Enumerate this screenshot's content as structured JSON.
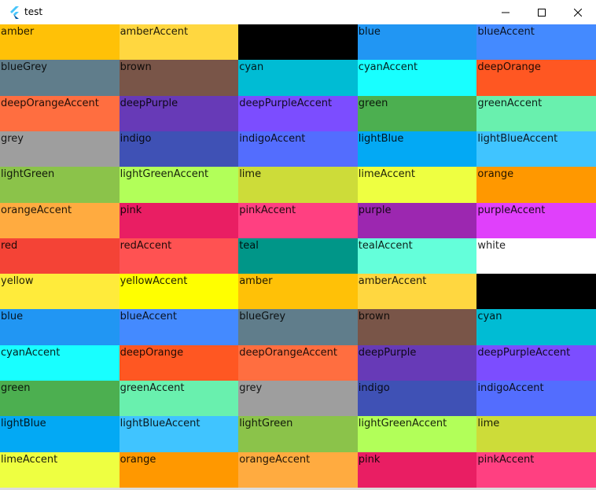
{
  "window": {
    "title": "test",
    "minimize_icon": "minimize-icon",
    "maximize_icon": "maximize-icon",
    "close_icon": "close-icon"
  },
  "cells": [
    {
      "label": "amber",
      "color": "#FFC107"
    },
    {
      "label": "amberAccent",
      "color": "#FFD740"
    },
    {
      "label": "",
      "color": "#000000"
    },
    {
      "label": "blue",
      "color": "#2196F3"
    },
    {
      "label": "blueAccent",
      "color": "#448AFF"
    },
    {
      "label": "blueGrey",
      "color": "#607D8B"
    },
    {
      "label": "brown",
      "color": "#795548"
    },
    {
      "label": "cyan",
      "color": "#00BCD4"
    },
    {
      "label": "cyanAccent",
      "color": "#18FFFF"
    },
    {
      "label": "deepOrange",
      "color": "#FF5722"
    },
    {
      "label": "deepOrangeAccent",
      "color": "#FF6E40"
    },
    {
      "label": "deepPurple",
      "color": "#673AB7"
    },
    {
      "label": "deepPurpleAccent",
      "color": "#7C4DFF"
    },
    {
      "label": "green",
      "color": "#4CAF50"
    },
    {
      "label": "greenAccent",
      "color": "#69F0AE"
    },
    {
      "label": "grey",
      "color": "#9E9E9E"
    },
    {
      "label": "indigo",
      "color": "#3F51B5"
    },
    {
      "label": "indigoAccent",
      "color": "#536DFE"
    },
    {
      "label": "lightBlue",
      "color": "#03A9F4"
    },
    {
      "label": "lightBlueAccent",
      "color": "#40C4FF"
    },
    {
      "label": "lightGreen",
      "color": "#8BC34A"
    },
    {
      "label": "lightGreenAccent",
      "color": "#B2FF59"
    },
    {
      "label": "lime",
      "color": "#CDDC39"
    },
    {
      "label": "limeAccent",
      "color": "#EEFF41"
    },
    {
      "label": "orange",
      "color": "#FF9800"
    },
    {
      "label": "orangeAccent",
      "color": "#FFAB40"
    },
    {
      "label": "pink",
      "color": "#E91E63"
    },
    {
      "label": "pinkAccent",
      "color": "#FF4081"
    },
    {
      "label": "purple",
      "color": "#9C27B0"
    },
    {
      "label": "purpleAccent",
      "color": "#E040FB"
    },
    {
      "label": "red",
      "color": "#F44336"
    },
    {
      "label": "redAccent",
      "color": "#FF5252"
    },
    {
      "label": "teal",
      "color": "#009688"
    },
    {
      "label": "tealAccent",
      "color": "#64FFDA"
    },
    {
      "label": "white",
      "color": "#FFFFFF"
    },
    {
      "label": "yellow",
      "color": "#FFEB3B"
    },
    {
      "label": "yellowAccent",
      "color": "#FFFF00"
    },
    {
      "label": "amber",
      "color": "#FFC107"
    },
    {
      "label": "amberAccent",
      "color": "#FFD740"
    },
    {
      "label": "",
      "color": "#000000"
    },
    {
      "label": "blue",
      "color": "#2196F3"
    },
    {
      "label": "blueAccent",
      "color": "#448AFF"
    },
    {
      "label": "blueGrey",
      "color": "#607D8B"
    },
    {
      "label": "brown",
      "color": "#795548"
    },
    {
      "label": "cyan",
      "color": "#00BCD4"
    },
    {
      "label": "cyanAccent",
      "color": "#18FFFF"
    },
    {
      "label": "deepOrange",
      "color": "#FF5722"
    },
    {
      "label": "deepOrangeAccent",
      "color": "#FF6E40"
    },
    {
      "label": "deepPurple",
      "color": "#673AB7"
    },
    {
      "label": "deepPurpleAccent",
      "color": "#7C4DFF"
    },
    {
      "label": "green",
      "color": "#4CAF50"
    },
    {
      "label": "greenAccent",
      "color": "#69F0AE"
    },
    {
      "label": "grey",
      "color": "#9E9E9E"
    },
    {
      "label": "indigo",
      "color": "#3F51B5"
    },
    {
      "label": "indigoAccent",
      "color": "#536DFE"
    },
    {
      "label": "lightBlue",
      "color": "#03A9F4"
    },
    {
      "label": "lightBlueAccent",
      "color": "#40C4FF"
    },
    {
      "label": "lightGreen",
      "color": "#8BC34A"
    },
    {
      "label": "lightGreenAccent",
      "color": "#B2FF59"
    },
    {
      "label": "lime",
      "color": "#CDDC39"
    },
    {
      "label": "limeAccent",
      "color": "#EEFF41"
    },
    {
      "label": "orange",
      "color": "#FF9800"
    },
    {
      "label": "orangeAccent",
      "color": "#FFAB40"
    },
    {
      "label": "pink",
      "color": "#E91E63"
    },
    {
      "label": "pinkAccent",
      "color": "#FF4081"
    }
  ]
}
